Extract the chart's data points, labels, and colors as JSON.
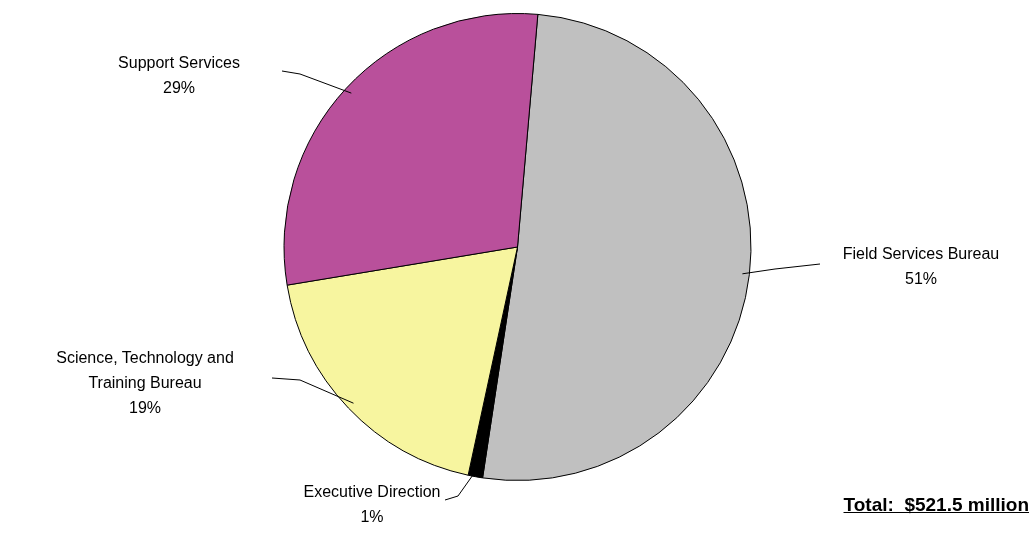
{
  "chart_data": {
    "type": "pie",
    "categories": [
      "Field Services Bureau",
      "Executive Direction",
      "Science, Technology and Training Bureau",
      "Support Services"
    ],
    "values": [
      51,
      1,
      19,
      29
    ],
    "value_labels": [
      "51%",
      "1%",
      "19%",
      "29%"
    ],
    "colors": [
      "#c0c0c0",
      "#000000",
      "#f7f59f",
      "#b9509b"
    ],
    "annotations": [
      "Total:  $521.5 million"
    ]
  }
}
